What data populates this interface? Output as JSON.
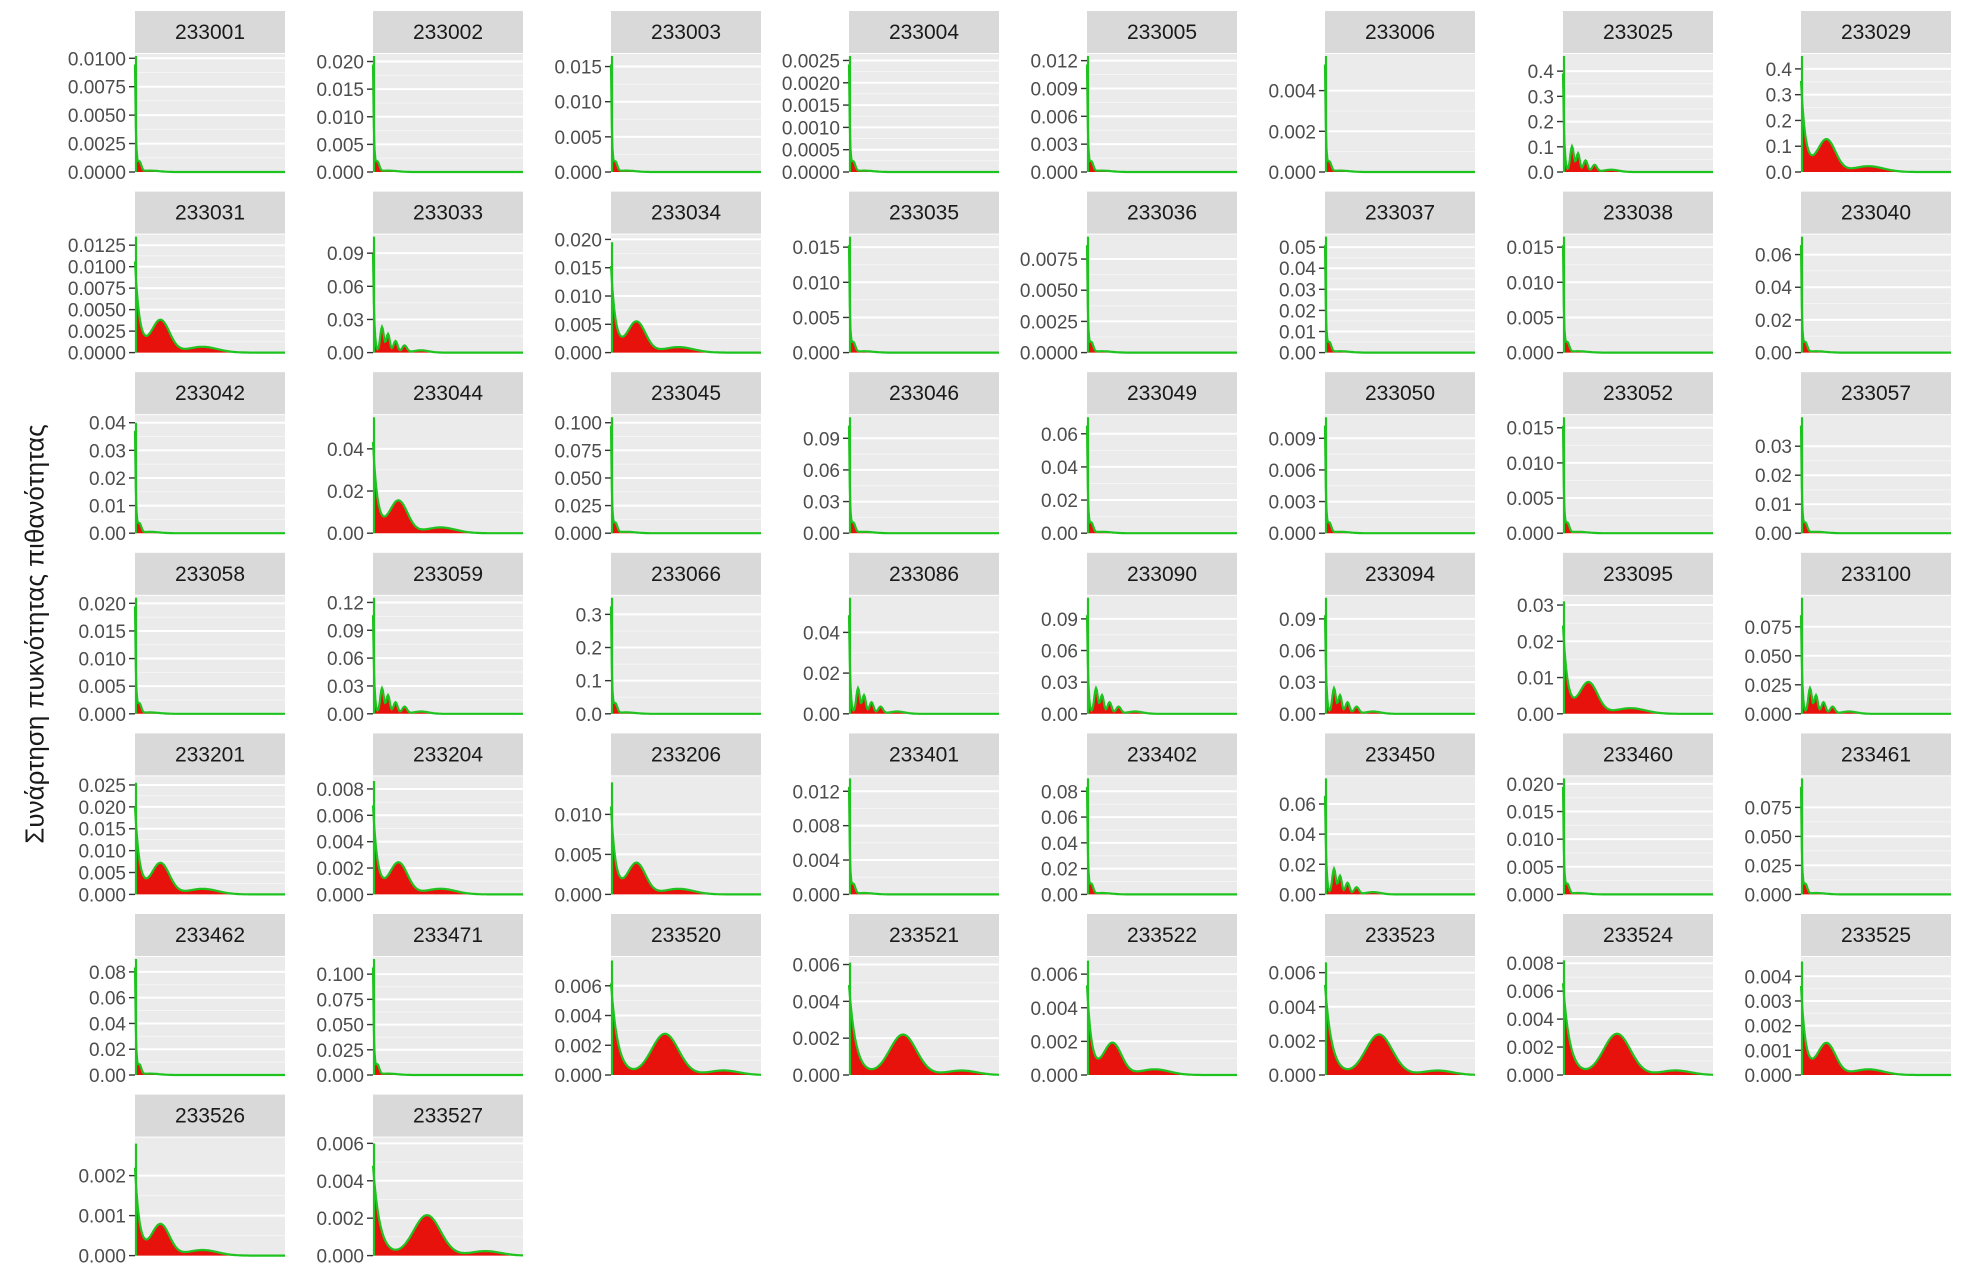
{
  "chart_data": {
    "type": "area",
    "title": "",
    "xlabel": "",
    "ylabel": "Συνάρτηση πυκνότητας πιθανότητας",
    "grid": true,
    "facet_layout": "wrap, 8 columns",
    "colors": {
      "fill": "#e8120c",
      "line": "#1fc31f",
      "panel_bg": "#ebebeb",
      "strip_bg": "#d9d9d9",
      "grid": "#ffffff"
    },
    "panels": [
      {
        "id": "233001",
        "ticks": [
          "0.0000",
          "0.0025",
          "0.0050",
          "0.0075",
          "0.0100"
        ],
        "ymax": 0.0102,
        "peak": 0.0102,
        "shape": "spike"
      },
      {
        "id": "233002",
        "ticks": [
          "0.000",
          "0.005",
          "0.010",
          "0.015",
          "0.020"
        ],
        "ymax": 0.021,
        "peak": 0.021,
        "shape": "spike"
      },
      {
        "id": "233003",
        "ticks": [
          "0.000",
          "0.005",
          "0.010",
          "0.015"
        ],
        "ymax": 0.0165,
        "peak": 0.0165,
        "shape": "spike"
      },
      {
        "id": "233004",
        "ticks": [
          "0.0000",
          "0.0005",
          "0.0010",
          "0.0015",
          "0.0020",
          "0.0025"
        ],
        "ymax": 0.0026,
        "peak": 0.0026,
        "shape": "spike"
      },
      {
        "id": "233005",
        "ticks": [
          "0.000",
          "0.003",
          "0.006",
          "0.009",
          "0.012"
        ],
        "ymax": 0.0125,
        "peak": 0.0125,
        "shape": "spike"
      },
      {
        "id": "233006",
        "ticks": [
          "0.000",
          "0.002",
          "0.004"
        ],
        "ymax": 0.0057,
        "peak": 0.0057,
        "shape": "spike"
      },
      {
        "id": "233025",
        "ticks": [
          "0.0",
          "0.1",
          "0.2",
          "0.3",
          "0.4"
        ],
        "ymax": 0.46,
        "peak": 0.46,
        "shape": "bumps"
      },
      {
        "id": "233029",
        "ticks": [
          "0.0",
          "0.1",
          "0.2",
          "0.3",
          "0.4"
        ],
        "ymax": 0.45,
        "peak": 0.45,
        "shape": "broad"
      },
      {
        "id": "233031",
        "ticks": [
          "0.0000",
          "0.0025",
          "0.0050",
          "0.0075",
          "0.0100",
          "0.0125"
        ],
        "ymax": 0.0135,
        "peak": 0.0135,
        "shape": "broad"
      },
      {
        "id": "233033",
        "ticks": [
          "0.00",
          "0.03",
          "0.06",
          "0.09"
        ],
        "ymax": 0.105,
        "peak": 0.105,
        "shape": "bumps"
      },
      {
        "id": "233034",
        "ticks": [
          "0.000",
          "0.005",
          "0.010",
          "0.015",
          "0.020"
        ],
        "ymax": 0.0205,
        "peak": 0.0195,
        "shape": "broad"
      },
      {
        "id": "233035",
        "ticks": [
          "0.000",
          "0.005",
          "0.010",
          "0.015"
        ],
        "ymax": 0.0165,
        "peak": 0.0165,
        "shape": "spike"
      },
      {
        "id": "233036",
        "ticks": [
          "0.0000",
          "0.0025",
          "0.0050",
          "0.0075"
        ],
        "ymax": 0.0093,
        "peak": 0.0093,
        "shape": "spike"
      },
      {
        "id": "233037",
        "ticks": [
          "0.00",
          "0.01",
          "0.02",
          "0.03",
          "0.04",
          "0.05"
        ],
        "ymax": 0.055,
        "peak": 0.055,
        "shape": "spike"
      },
      {
        "id": "233038",
        "ticks": [
          "0.000",
          "0.005",
          "0.010",
          "0.015"
        ],
        "ymax": 0.0165,
        "peak": 0.0165,
        "shape": "spike"
      },
      {
        "id": "233040",
        "ticks": [
          "0.00",
          "0.02",
          "0.04",
          "0.06"
        ],
        "ymax": 0.071,
        "peak": 0.071,
        "shape": "spike"
      },
      {
        "id": "233042",
        "ticks": [
          "0.00",
          "0.01",
          "0.02",
          "0.03",
          "0.04"
        ],
        "ymax": 0.042,
        "peak": 0.04,
        "shape": "spike"
      },
      {
        "id": "233044",
        "ticks": [
          "0.00",
          "0.02",
          "0.04"
        ],
        "ymax": 0.055,
        "peak": 0.055,
        "shape": "broad"
      },
      {
        "id": "233045",
        "ticks": [
          "0.000",
          "0.025",
          "0.050",
          "0.075",
          "0.100"
        ],
        "ymax": 0.105,
        "peak": 0.105,
        "shape": "spike"
      },
      {
        "id": "233046",
        "ticks": [
          "0.00",
          "0.03",
          "0.06",
          "0.09"
        ],
        "ymax": 0.11,
        "peak": 0.11,
        "shape": "spike"
      },
      {
        "id": "233049",
        "ticks": [
          "0.00",
          "0.02",
          "0.04",
          "0.06"
        ],
        "ymax": 0.07,
        "peak": 0.07,
        "shape": "spike"
      },
      {
        "id": "233050",
        "ticks": [
          "0.000",
          "0.003",
          "0.006",
          "0.009"
        ],
        "ymax": 0.011,
        "peak": 0.011,
        "shape": "spike"
      },
      {
        "id": "233052",
        "ticks": [
          "0.000",
          "0.005",
          "0.010",
          "0.015"
        ],
        "ymax": 0.0165,
        "peak": 0.0165,
        "shape": "spike"
      },
      {
        "id": "233057",
        "ticks": [
          "0.00",
          "0.01",
          "0.02",
          "0.03"
        ],
        "ymax": 0.04,
        "peak": 0.04,
        "shape": "spike"
      },
      {
        "id": "233058",
        "ticks": [
          "0.000",
          "0.005",
          "0.010",
          "0.015",
          "0.020"
        ],
        "ymax": 0.021,
        "peak": 0.021,
        "shape": "spike"
      },
      {
        "id": "233059",
        "ticks": [
          "0.00",
          "0.03",
          "0.06",
          "0.09",
          "0.12"
        ],
        "ymax": 0.125,
        "peak": 0.125,
        "shape": "bumps"
      },
      {
        "id": "233066",
        "ticks": [
          "0.0",
          "0.1",
          "0.2",
          "0.3"
        ],
        "ymax": 0.35,
        "peak": 0.35,
        "shape": "spike"
      },
      {
        "id": "233086",
        "ticks": [
          "0.00",
          "0.02",
          "0.04"
        ],
        "ymax": 0.057,
        "peak": 0.057,
        "shape": "bumps"
      },
      {
        "id": "233090",
        "ticks": [
          "0.00",
          "0.03",
          "0.06",
          "0.09"
        ],
        "ymax": 0.11,
        "peak": 0.11,
        "shape": "bumps"
      },
      {
        "id": "233094",
        "ticks": [
          "0.00",
          "0.03",
          "0.06",
          "0.09"
        ],
        "ymax": 0.11,
        "peak": 0.11,
        "shape": "bumps"
      },
      {
        "id": "233095",
        "ticks": [
          "0.00",
          "0.01",
          "0.02",
          "0.03"
        ],
        "ymax": 0.032,
        "peak": 0.031,
        "shape": "broad"
      },
      {
        "id": "233100",
        "ticks": [
          "0.000",
          "0.025",
          "0.050",
          "0.075"
        ],
        "ymax": 0.1,
        "peak": 0.1,
        "shape": "bumps"
      },
      {
        "id": "233201",
        "ticks": [
          "0.000",
          "0.005",
          "0.010",
          "0.015",
          "0.020",
          "0.025"
        ],
        "ymax": 0.0265,
        "peak": 0.0255,
        "shape": "broad"
      },
      {
        "id": "233204",
        "ticks": [
          "0.000",
          "0.002",
          "0.004",
          "0.006",
          "0.008"
        ],
        "ymax": 0.0088,
        "peak": 0.0086,
        "shape": "broad"
      },
      {
        "id": "233206",
        "ticks": [
          "0.000",
          "0.005",
          "0.010"
        ],
        "ymax": 0.0145,
        "peak": 0.014,
        "shape": "broad"
      },
      {
        "id": "233401",
        "ticks": [
          "0.000",
          "0.004",
          "0.008",
          "0.012"
        ],
        "ymax": 0.0135,
        "peak": 0.0135,
        "shape": "spike"
      },
      {
        "id": "233402",
        "ticks": [
          "0.00",
          "0.02",
          "0.04",
          "0.06",
          "0.08"
        ],
        "ymax": 0.09,
        "peak": 0.09,
        "shape": "spike"
      },
      {
        "id": "233450",
        "ticks": [
          "0.00",
          "0.02",
          "0.04",
          "0.06"
        ],
        "ymax": 0.077,
        "peak": 0.077,
        "shape": "bumps"
      },
      {
        "id": "233460",
        "ticks": [
          "0.000",
          "0.005",
          "0.010",
          "0.015",
          "0.020"
        ],
        "ymax": 0.021,
        "peak": 0.021,
        "shape": "spike"
      },
      {
        "id": "233461",
        "ticks": [
          "0.000",
          "0.025",
          "0.050",
          "0.075"
        ],
        "ymax": 0.1,
        "peak": 0.1,
        "shape": "spike"
      },
      {
        "id": "233462",
        "ticks": [
          "0.00",
          "0.02",
          "0.04",
          "0.06",
          "0.08"
        ],
        "ymax": 0.09,
        "peak": 0.09,
        "shape": "spike"
      },
      {
        "id": "233471",
        "ticks": [
          "0.000",
          "0.025",
          "0.050",
          "0.075",
          "0.100"
        ],
        "ymax": 0.115,
        "peak": 0.115,
        "shape": "spike"
      },
      {
        "id": "233520",
        "ticks": [
          "0.000",
          "0.002",
          "0.004",
          "0.006"
        ],
        "ymax": 0.0078,
        "peak": 0.0077,
        "shape": "bimodal"
      },
      {
        "id": "233521",
        "ticks": [
          "0.000",
          "0.002",
          "0.004",
          "0.006"
        ],
        "ymax": 0.0063,
        "peak": 0.0061,
        "shape": "bimodal"
      },
      {
        "id": "233522",
        "ticks": [
          "0.000",
          "0.002",
          "0.004",
          "0.006"
        ],
        "ymax": 0.0069,
        "peak": 0.0068,
        "shape": "broad"
      },
      {
        "id": "233523",
        "ticks": [
          "0.000",
          "0.002",
          "0.004",
          "0.006"
        ],
        "ymax": 0.0068,
        "peak": 0.0066,
        "shape": "bimodal"
      },
      {
        "id": "233524",
        "ticks": [
          "0.000",
          "0.002",
          "0.004",
          "0.006",
          "0.008"
        ],
        "ymax": 0.0083,
        "peak": 0.0082,
        "shape": "bimodal"
      },
      {
        "id": "233525",
        "ticks": [
          "0.000",
          "0.001",
          "0.002",
          "0.003",
          "0.004"
        ],
        "ymax": 0.0047,
        "peak": 0.0046,
        "shape": "broad"
      },
      {
        "id": "233526",
        "ticks": [
          "0.000",
          "0.001",
          "0.002"
        ],
        "ymax": 0.0029,
        "peak": 0.0028,
        "shape": "broad"
      },
      {
        "id": "233527",
        "ticks": [
          "0.000",
          "0.002",
          "0.004",
          "0.006"
        ],
        "ymax": 0.0062,
        "peak": 0.006,
        "shape": "bimodal"
      }
    ]
  }
}
